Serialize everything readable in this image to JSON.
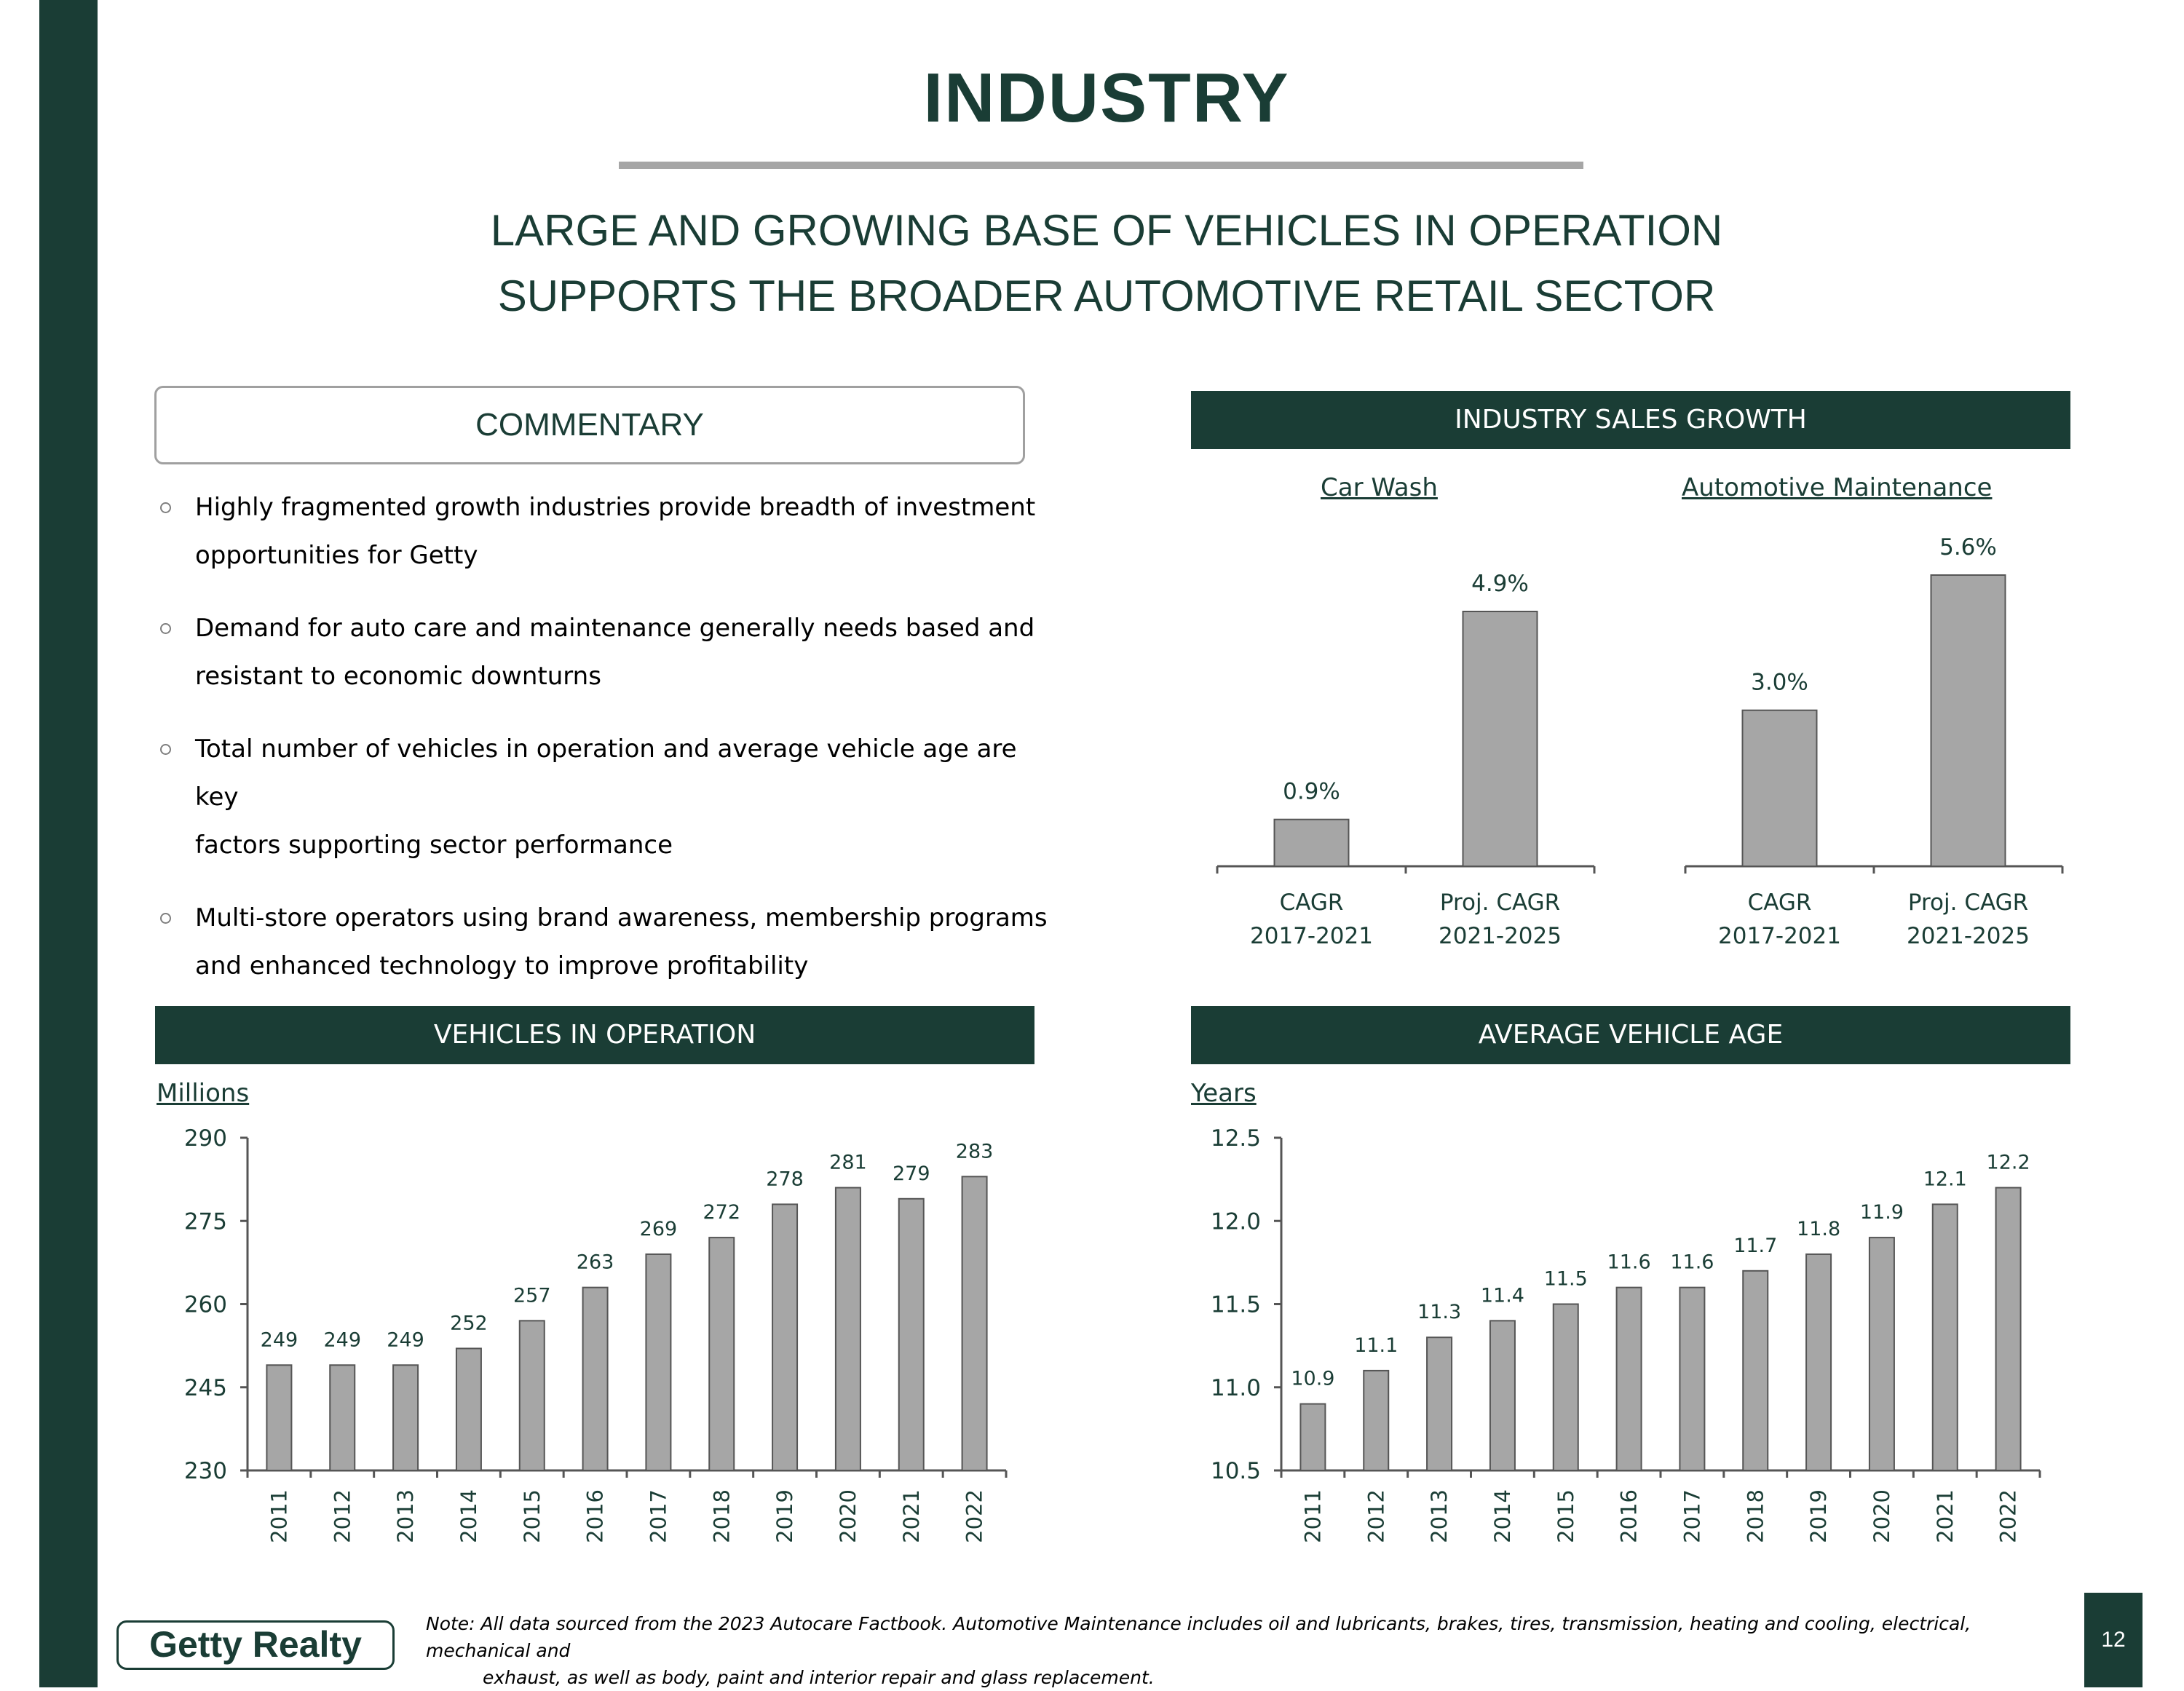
{
  "page": {
    "title": "INDUSTRY",
    "subtitle_line1": "LARGE AND GROWING BASE OF VEHICLES IN OPERATION",
    "subtitle_line2": "SUPPORTS THE BROADER AUTOMOTIVE RETAIL SECTOR",
    "page_number": "12",
    "logo_text": "Getty Realty",
    "note_line1": "Note: All data sourced from the 2023 Autocare Factbook.  Automotive Maintenance includes oil and lubricants, brakes, tires, transmission, heating and cooling, electrical, mechanical and",
    "note_line2": "exhaust, as well as body, paint and interior repair and glass replacement."
  },
  "commentary": {
    "header": "COMMENTARY",
    "bullets": [
      {
        "line1": "Highly fragmented growth industries provide breadth of investment",
        "line2": "opportunities for Getty"
      },
      {
        "line1": "Demand for auto care and maintenance generally needs based and",
        "line2": "resistant to economic downturns"
      },
      {
        "line1": "Total number of vehicles in operation and average vehicle age are key",
        "line2": "factors supporting sector performance"
      },
      {
        "line1": "Multi-store operators using brand awareness, membership programs",
        "line2": "and enhanced technology to improve profitability"
      }
    ]
  },
  "colors": {
    "brand_green": "#1a3d35",
    "bar_gray": "#a6a6a6",
    "rule_gray": "#a6a6a6"
  },
  "chart_data": [
    {
      "id": "sales_growth",
      "type": "bar",
      "title": "INDUSTRY SALES GROWTH",
      "panels": [
        {
          "name": "Car Wash",
          "categories": [
            [
              "CAGR",
              "2017-2021"
            ],
            [
              "Proj. CAGR",
              "2021-2025"
            ]
          ],
          "values": [
            0.9,
            4.9
          ],
          "labels": [
            "0.9%",
            "4.9%"
          ]
        },
        {
          "name": "Automotive Maintenance",
          "categories": [
            [
              "CAGR",
              "2017-2021"
            ],
            [
              "Proj. CAGR",
              "2021-2025"
            ]
          ],
          "values": [
            3.0,
            5.6
          ],
          "labels": [
            "3.0%",
            "5.6%"
          ]
        }
      ],
      "ylim": [
        0,
        5.6
      ],
      "unit": "%"
    },
    {
      "id": "vehicles",
      "type": "bar",
      "title": "VEHICLES IN OPERATION",
      "unit_label": "Millions",
      "categories": [
        "2011",
        "2012",
        "2013",
        "2014",
        "2015",
        "2016",
        "2017",
        "2018",
        "2019",
        "2020",
        "2021",
        "2022"
      ],
      "values": [
        249,
        249,
        249,
        252,
        257,
        263,
        269,
        272,
        278,
        281,
        279,
        283
      ],
      "labels": [
        "249",
        "249",
        "249",
        "252",
        "257",
        "263",
        "269",
        "272",
        "278",
        "281",
        "279",
        "283"
      ],
      "ylim": [
        230,
        290
      ],
      "yticks": [
        230,
        245,
        260,
        275,
        290
      ],
      "ytick_labels": [
        "230",
        "245",
        "260",
        "275",
        "290"
      ]
    },
    {
      "id": "age",
      "type": "bar",
      "title": "AVERAGE VEHICLE AGE",
      "unit_label": "Years",
      "categories": [
        "2011",
        "2012",
        "2013",
        "2014",
        "2015",
        "2016",
        "2017",
        "2018",
        "2019",
        "2020",
        "2021",
        "2022"
      ],
      "values": [
        10.9,
        11.1,
        11.3,
        11.4,
        11.5,
        11.6,
        11.6,
        11.7,
        11.8,
        11.9,
        12.1,
        12.2
      ],
      "labels": [
        "10.9",
        "11.1",
        "11.3",
        "11.4",
        "11.5",
        "11.6",
        "11.6",
        "11.7",
        "11.8",
        "11.9",
        "12.1",
        "12.2"
      ],
      "ylim": [
        10.5,
        12.5
      ],
      "yticks": [
        10.5,
        11.0,
        11.5,
        12.0,
        12.5
      ],
      "ytick_labels": [
        "10.5",
        "11.0",
        "11.5",
        "12.0",
        "12.5"
      ]
    }
  ]
}
